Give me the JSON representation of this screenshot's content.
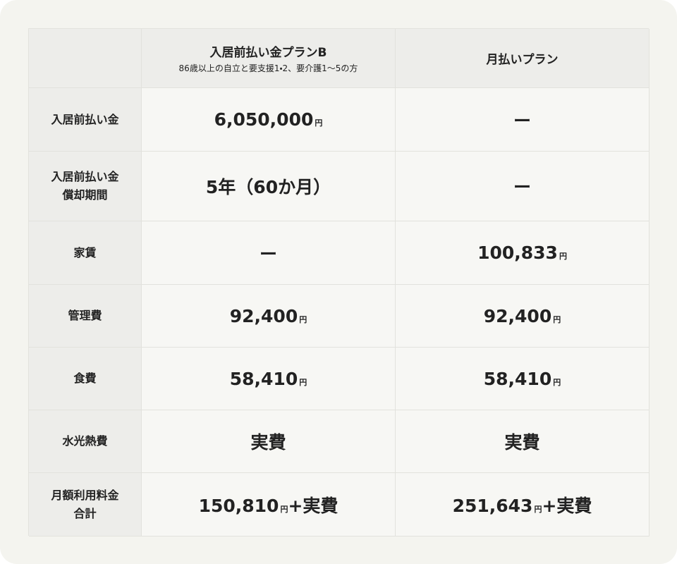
{
  "table": {
    "header": {
      "plans": [
        {
          "name": "入居前払い金プランB",
          "note": "86歳以上の自立と要支援1・2、要介護1〜5の方"
        },
        {
          "name": "月払いプラン"
        }
      ]
    },
    "rows": [
      {
        "label": [
          "入居前払い金"
        ],
        "cells": [
          {
            "amount": "6,050,000",
            "unit": "円"
          },
          {
            "text": "ー"
          }
        ]
      },
      {
        "label": [
          "入居前払い金",
          "償却期間"
        ],
        "cells": [
          {
            "text": "5年（60か月）"
          },
          {
            "text": "ー"
          }
        ]
      },
      {
        "label": [
          "家賃"
        ],
        "cells": [
          {
            "text": "ー"
          },
          {
            "amount": "100,833",
            "unit": "円"
          }
        ]
      },
      {
        "label": [
          "管理費"
        ],
        "cells": [
          {
            "amount": "92,400",
            "unit": "円"
          },
          {
            "amount": "92,400",
            "unit": "円"
          }
        ]
      },
      {
        "label": [
          "食費"
        ],
        "cells": [
          {
            "amount": "58,410",
            "unit": "円"
          },
          {
            "amount": "58,410",
            "unit": "円"
          }
        ]
      },
      {
        "label": [
          "水光熱費"
        ],
        "cells": [
          {
            "text": "実費"
          },
          {
            "text": "実費"
          }
        ]
      },
      {
        "label": [
          "月額利用料金",
          "合計"
        ],
        "cells": [
          {
            "amount": "150,810",
            "unit": "円",
            "suffix": "+実費"
          },
          {
            "amount": "251,643",
            "unit": "円",
            "suffix": "+実費"
          }
        ]
      }
    ]
  }
}
